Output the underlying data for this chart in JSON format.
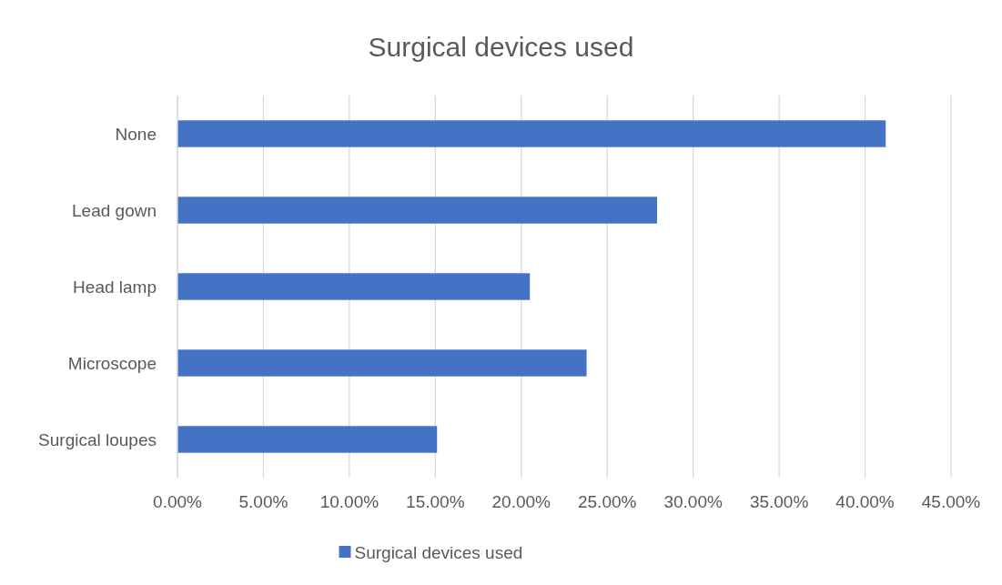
{
  "chart_data": {
    "type": "bar",
    "orientation": "horizontal",
    "title": "Surgical devices used",
    "categories": [
      "None",
      "Lead gown",
      "Head lamp",
      "Microscope",
      "Surgical loupes"
    ],
    "series": [
      {
        "name": "Surgical devices used",
        "color": "#4472c4",
        "values": [
          41.2,
          27.9,
          20.5,
          23.8,
          15.1
        ]
      }
    ],
    "xlim": [
      0,
      45
    ],
    "xticks": [
      {
        "value": 0,
        "label": "0.00%"
      },
      {
        "value": 5,
        "label": "5.00%"
      },
      {
        "value": 10,
        "label": "10.00%"
      },
      {
        "value": 15,
        "label": "15.00%"
      },
      {
        "value": 20,
        "label": "20.00%"
      },
      {
        "value": 25,
        "label": "25.00%"
      },
      {
        "value": 30,
        "label": "30.00%"
      },
      {
        "value": 35,
        "label": "35.00%"
      },
      {
        "value": 40,
        "label": "40.00%"
      },
      {
        "value": 45,
        "label": "45.00%"
      }
    ],
    "grid": "x",
    "legend": "bottom"
  }
}
